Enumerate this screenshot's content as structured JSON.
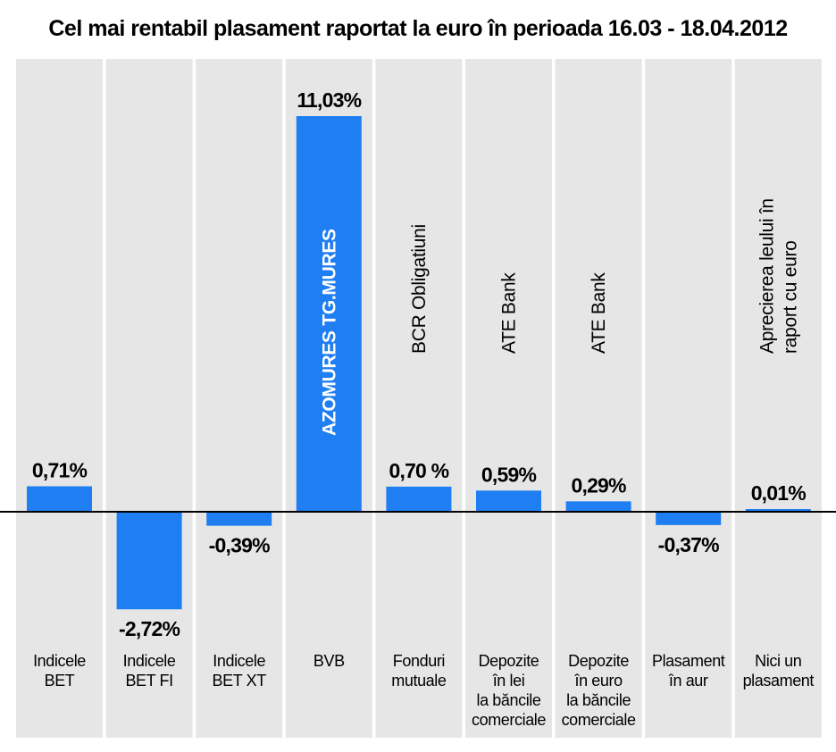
{
  "chart_data": {
    "type": "bar",
    "title": "Cel mai rentabil plasament raportat la euro în perioada 16.03 - 18.04.2012",
    "xlabel": "",
    "ylabel": "",
    "ylim": [
      -3.0,
      11.5
    ],
    "grid": false,
    "legend": "none",
    "bar_color": "#1f7ef2",
    "column_background": "#e6e6e6",
    "categories": [
      {
        "lines": [
          "Indicele",
          "BET"
        ]
      },
      {
        "lines": [
          "Indicele",
          "BET FI"
        ]
      },
      {
        "lines": [
          "Indicele",
          "BET XT"
        ]
      },
      {
        "lines": [
          "BVB"
        ]
      },
      {
        "lines": [
          "Fonduri",
          "mutuale"
        ]
      },
      {
        "lines": [
          "Depozite",
          "în lei",
          "la băncile",
          "comerciale"
        ]
      },
      {
        "lines": [
          "Depozite",
          "în euro",
          "la băncile",
          "comerciale"
        ]
      },
      {
        "lines": [
          "Plasament",
          "în aur"
        ]
      },
      {
        "lines": [
          "Nici un",
          "plasament"
        ]
      }
    ],
    "values": [
      0.71,
      -2.72,
      -0.39,
      11.03,
      0.7,
      0.59,
      0.29,
      -0.37,
      0.01
    ],
    "data_labels": [
      "0,71%",
      "-2,72%",
      "-0,39%",
      "11,03%",
      "0,70 %",
      "0,59%",
      "0,29%",
      "-0,37%",
      "0,01%"
    ],
    "annotations": [
      {
        "category_index": 3,
        "lines": [
          "AZOMURES TG.MURES"
        ],
        "inside_bar": true
      },
      {
        "category_index": 4,
        "lines": [
          "BCR Obligatiuni"
        ],
        "inside_bar": false
      },
      {
        "category_index": 5,
        "lines": [
          "ATE Bank"
        ],
        "inside_bar": false
      },
      {
        "category_index": 6,
        "lines": [
          "ATE Bank"
        ],
        "inside_bar": false
      },
      {
        "category_index": 8,
        "lines": [
          "Aprecierea leului în",
          "raport cu euro"
        ],
        "inside_bar": false
      }
    ]
  }
}
